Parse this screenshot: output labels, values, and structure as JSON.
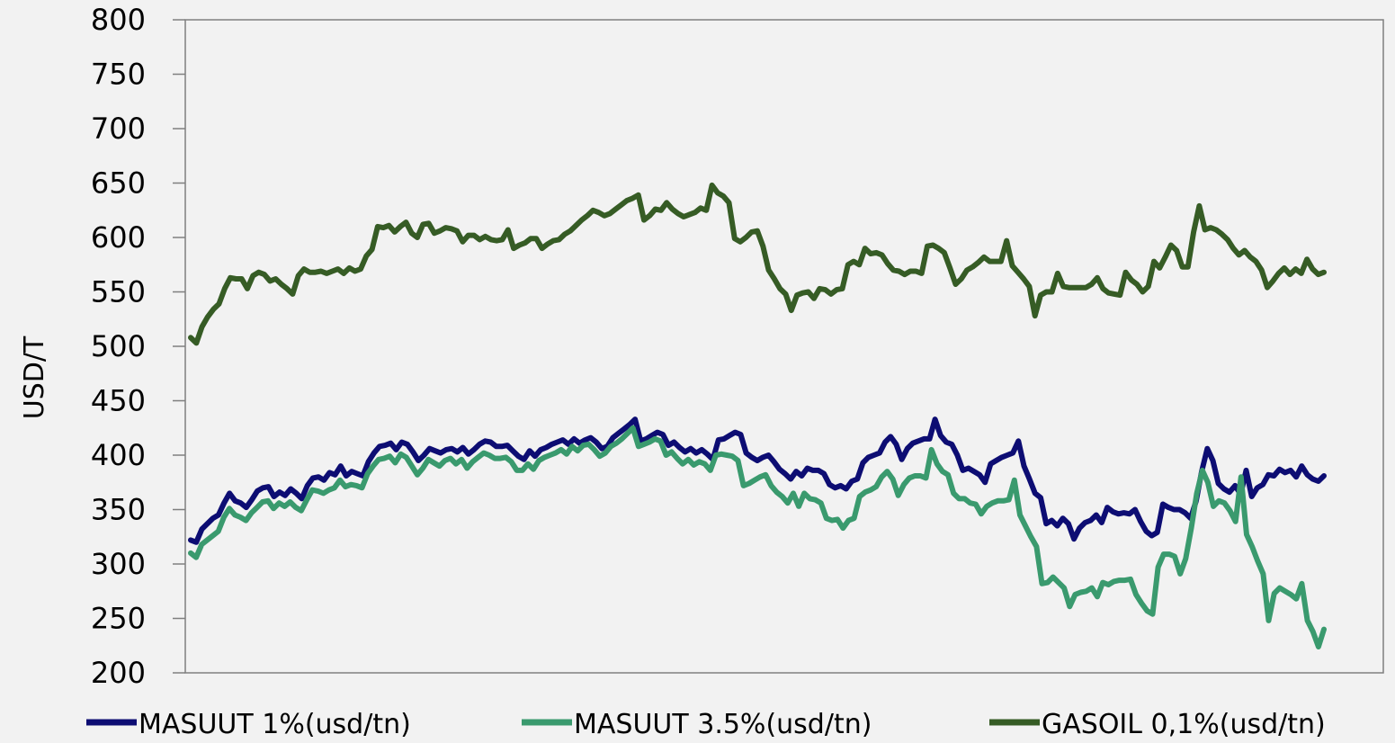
{
  "chart_data": {
    "type": "line",
    "ylabel": "USD/T",
    "xlabel": "",
    "ylim": [
      200,
      800
    ],
    "yticks": [
      "200",
      "250",
      "300",
      "350",
      "400",
      "450",
      "500",
      "550",
      "600",
      "650",
      "700",
      "750",
      "800"
    ],
    "grid": false,
    "legend_position": "bottom",
    "series": [
      {
        "name": "MASUUT 1%(usd/tn)",
        "color": "#0d0d73",
        "values": [
          322,
          320,
          332,
          337,
          342,
          345,
          356,
          365,
          358,
          356,
          352,
          359,
          367,
          370,
          371,
          362,
          366,
          363,
          369,
          365,
          360,
          372,
          379,
          380,
          377,
          384,
          382,
          390,
          381,
          385,
          383,
          381,
          394,
          402,
          408,
          409,
          411,
          405,
          412,
          410,
          403,
          395,
          400,
          406,
          404,
          402,
          405,
          406,
          403,
          407,
          401,
          405,
          410,
          413,
          412,
          408,
          408,
          409,
          404,
          399,
          396,
          404,
          399,
          405,
          407,
          410,
          412,
          414,
          410,
          415,
          411,
          414,
          416,
          412,
          406,
          408,
          416,
          420,
          424,
          428,
          433,
          413,
          415,
          418,
          421,
          419,
          409,
          412,
          407,
          403,
          406,
          402,
          405,
          401,
          396,
          414,
          415,
          418,
          421,
          419,
          402,
          398,
          395,
          398,
          400,
          394,
          387,
          383,
          378,
          385,
          381,
          388,
          386,
          386,
          383,
          373,
          370,
          372,
          369,
          376,
          378,
          393,
          398,
          400,
          402,
          412,
          417,
          410,
          396,
          406,
          411,
          413,
          415,
          415,
          433,
          418,
          412,
          410,
          400,
          386,
          388,
          385,
          382,
          375,
          392,
          395,
          398,
          400,
          402,
          413,
          390,
          378,
          365,
          361,
          337,
          340,
          335,
          342,
          337,
          323,
          333,
          338,
          340,
          345,
          338,
          352,
          348,
          346,
          347,
          346,
          350,
          339,
          330,
          326,
          329,
          355,
          352,
          350,
          350,
          347,
          342,
          358,
          385,
          406,
          395,
          374,
          369,
          366,
          372,
          364,
          386,
          362,
          370,
          373,
          382,
          381,
          387,
          384,
          386,
          380,
          390,
          382,
          378,
          376,
          381
        ]
      },
      {
        "name": "MASUUT 3.5%(usd/tn)",
        "color": "#3a9a6e",
        "values": [
          310,
          306,
          318,
          322,
          326,
          330,
          343,
          351,
          345,
          343,
          340,
          347,
          352,
          357,
          358,
          351,
          356,
          353,
          357,
          352,
          349,
          359,
          368,
          367,
          365,
          368,
          370,
          377,
          371,
          373,
          372,
          370,
          383,
          390,
          396,
          397,
          399,
          393,
          401,
          398,
          390,
          382,
          388,
          396,
          393,
          390,
          395,
          397,
          392,
          396,
          388,
          394,
          398,
          402,
          400,
          397,
          397,
          398,
          394,
          386,
          386,
          392,
          387,
          395,
          398,
          400,
          402,
          405,
          401,
          408,
          404,
          409,
          410,
          405,
          399,
          402,
          408,
          411,
          415,
          420,
          425,
          408,
          410,
          412,
          415,
          413,
          400,
          403,
          397,
          392,
          396,
          391,
          394,
          392,
          386,
          400,
          401,
          400,
          399,
          395,
          372,
          374,
          377,
          380,
          382,
          372,
          366,
          362,
          356,
          365,
          353,
          365,
          360,
          359,
          356,
          342,
          340,
          341,
          333,
          340,
          342,
          362,
          366,
          368,
          371,
          380,
          385,
          378,
          363,
          373,
          379,
          381,
          381,
          379,
          405,
          392,
          385,
          382,
          365,
          360,
          360,
          356,
          355,
          346,
          353,
          356,
          358,
          358,
          359,
          377,
          345,
          335,
          325,
          316,
          282,
          283,
          288,
          283,
          278,
          261,
          272,
          274,
          275,
          278,
          270,
          283,
          281,
          284,
          285,
          285,
          286,
          272,
          264,
          257,
          254,
          297,
          309,
          309,
          307,
          291,
          305,
          333,
          365,
          386,
          375,
          353,
          358,
          356,
          349,
          339,
          380,
          327,
          316,
          303,
          291,
          248,
          273,
          278,
          275,
          272,
          268,
          282,
          248,
          238,
          224,
          240
        ]
      },
      {
        "name": "GASOIL  0,1%(usd/tn)",
        "color": "#365c25",
        "values": [
          508,
          503,
          518,
          527,
          534,
          539,
          553,
          563,
          562,
          562,
          553,
          565,
          568,
          566,
          560,
          562,
          557,
          553,
          548,
          565,
          571,
          568,
          568,
          569,
          567,
          569,
          571,
          567,
          572,
          569,
          571,
          583,
          589,
          610,
          609,
          611,
          605,
          610,
          614,
          604,
          600,
          612,
          613,
          604,
          606,
          609,
          608,
          606,
          596,
          602,
          602,
          598,
          601,
          598,
          597,
          598,
          607,
          590,
          593,
          595,
          599,
          599,
          590,
          594,
          597,
          598,
          603,
          606,
          611,
          616,
          620,
          625,
          623,
          620,
          622,
          626,
          630,
          634,
          636,
          639,
          616,
          620,
          626,
          625,
          632,
          626,
          622,
          619,
          621,
          623,
          627,
          625,
          648,
          641,
          638,
          632,
          599,
          596,
          600,
          605,
          606,
          592,
          570,
          562,
          553,
          548,
          533,
          547,
          549,
          550,
          544,
          553,
          552,
          548,
          552,
          553,
          575,
          578,
          575,
          590,
          585,
          586,
          584,
          576,
          570,
          569,
          566,
          569,
          569,
          567,
          592,
          593,
          590,
          586,
          572,
          557,
          562,
          570,
          573,
          577,
          582,
          578,
          578,
          578,
          597,
          574,
          568,
          562,
          555,
          528,
          547,
          550,
          550,
          567,
          555,
          554,
          554,
          554,
          554,
          557,
          563,
          553,
          549,
          548,
          547,
          568,
          561,
          557,
          550,
          555,
          578,
          572,
          582,
          593,
          588,
          573,
          573,
          605,
          629,
          607,
          609,
          607,
          603,
          598,
          590,
          584,
          588,
          582,
          578,
          570,
          554,
          560,
          567,
          572,
          566,
          571,
          567,
          580,
          571,
          566,
          568
        ]
      }
    ]
  }
}
